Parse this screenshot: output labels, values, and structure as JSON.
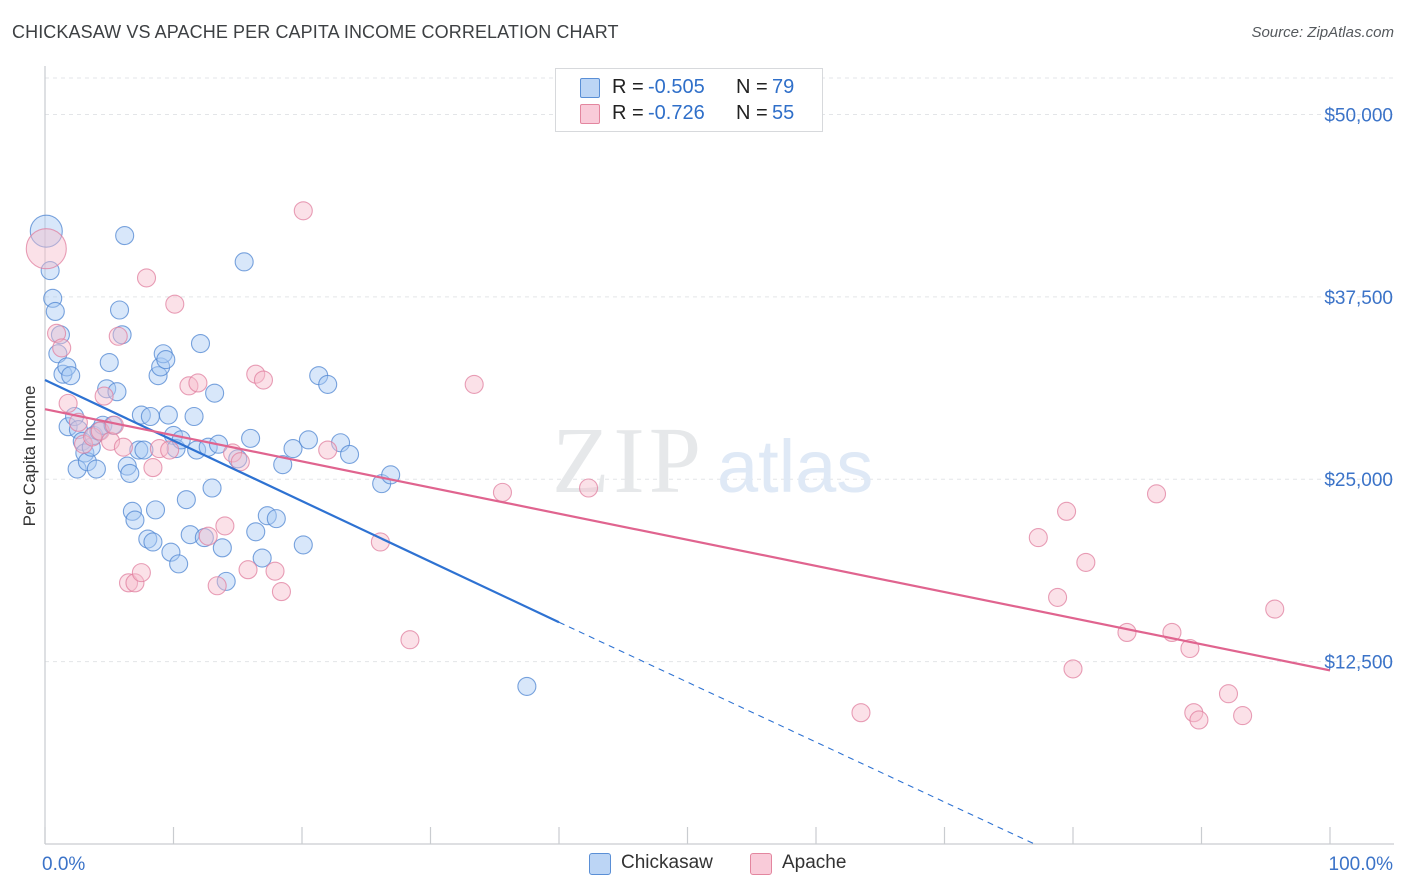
{
  "header": {
    "title": "CHICKASAW VS APACHE PER CAPITA INCOME CORRELATION CHART",
    "source": "Source: ZipAtlas.com"
  },
  "watermark": {
    "zip": "ZIP",
    "atlas": "atlas"
  },
  "legend": {
    "rows": [
      {
        "r_label": "R =",
        "r_value": "-0.505",
        "n_label": "N =",
        "n_value": "79"
      },
      {
        "r_label": "R =",
        "r_value": "-0.726",
        "n_label": "N =",
        "n_value": "55"
      }
    ]
  },
  "bottom_legend": {
    "items": [
      "Chickasaw",
      "Apache"
    ]
  },
  "colors": {
    "chickasaw_fill": "#a9c9f3",
    "chickasaw_stroke": "#4f86d1",
    "chickasaw_line": "#2e72d2",
    "apache_fill": "#f6bccd",
    "apache_stroke": "#e07f9f",
    "apache_line": "#e0648f",
    "axis_text": "#3b73c8",
    "grid": "#e3e5e8"
  },
  "chart_data": {
    "type": "scatter",
    "title": "CHICKASAW VS APACHE PER CAPITA INCOME CORRELATION CHART",
    "xlabel": "",
    "ylabel": "Per Capita Income",
    "xlim": [
      0,
      100
    ],
    "ylim": [
      0,
      52500
    ],
    "x_tick_labels": [
      "0.0%",
      "100.0%"
    ],
    "y_ticks": [
      12500,
      25000,
      37500,
      50000
    ],
    "y_tick_labels": [
      "$12,500",
      "$25,000",
      "$37,500",
      "$50,000"
    ],
    "series": [
      {
        "name": "Chickasaw",
        "r": -0.505,
        "n": 79,
        "trend": {
          "x": [
            0,
            40
          ],
          "y": [
            31800,
            15200
          ],
          "dashed_to": [
            77,
            0
          ]
        },
        "points": [
          [
            0.1,
            42000,
            16
          ],
          [
            0.4,
            39300,
            9
          ],
          [
            0.6,
            37400,
            9
          ],
          [
            0.8,
            36500,
            9
          ],
          [
            1.0,
            33600,
            9
          ],
          [
            1.2,
            34900,
            9
          ],
          [
            1.4,
            32200,
            9
          ],
          [
            1.7,
            32700,
            9
          ],
          [
            2.0,
            32100,
            9
          ],
          [
            1.8,
            28600,
            9
          ],
          [
            2.3,
            29300,
            9
          ],
          [
            2.6,
            28400,
            9
          ],
          [
            2.5,
            25700,
            9
          ],
          [
            2.9,
            27600,
            9
          ],
          [
            3.1,
            26800,
            9
          ],
          [
            3.3,
            26200,
            9
          ],
          [
            3.6,
            27200,
            9
          ],
          [
            3.8,
            28000,
            9
          ],
          [
            4.0,
            25700,
            9
          ],
          [
            4.2,
            28300,
            9
          ],
          [
            4.5,
            28700,
            9
          ],
          [
            4.8,
            31200,
            9
          ],
          [
            5.0,
            33000,
            9
          ],
          [
            5.3,
            28700,
            9
          ],
          [
            5.6,
            31000,
            9
          ],
          [
            5.8,
            36600,
            9
          ],
          [
            6.0,
            34900,
            9
          ],
          [
            6.2,
            41700,
            9
          ],
          [
            6.4,
            25900,
            9
          ],
          [
            6.6,
            25400,
            9
          ],
          [
            6.8,
            22800,
            9
          ],
          [
            7.0,
            22200,
            9
          ],
          [
            7.3,
            27000,
            9
          ],
          [
            7.5,
            29400,
            9
          ],
          [
            7.7,
            27000,
            9
          ],
          [
            8.0,
            20900,
            9
          ],
          [
            8.2,
            29300,
            9
          ],
          [
            8.4,
            20700,
            9
          ],
          [
            8.6,
            22900,
            9
          ],
          [
            8.8,
            32100,
            9
          ],
          [
            9.0,
            32700,
            9
          ],
          [
            9.2,
            33600,
            9
          ],
          [
            9.4,
            33200,
            9
          ],
          [
            9.6,
            29400,
            9
          ],
          [
            9.8,
            20000,
            9
          ],
          [
            10.0,
            28000,
            9
          ],
          [
            10.2,
            27100,
            9
          ],
          [
            10.4,
            19200,
            9
          ],
          [
            10.6,
            27700,
            9
          ],
          [
            11.0,
            23600,
            9
          ],
          [
            11.3,
            21200,
            9
          ],
          [
            11.6,
            29300,
            9
          ],
          [
            11.8,
            27000,
            9
          ],
          [
            12.1,
            34300,
            9
          ],
          [
            12.4,
            21000,
            9
          ],
          [
            12.7,
            27200,
            9
          ],
          [
            13.0,
            24400,
            9
          ],
          [
            13.2,
            30900,
            9
          ],
          [
            13.5,
            27400,
            9
          ],
          [
            13.8,
            20300,
            9
          ],
          [
            14.1,
            18000,
            9
          ],
          [
            15.0,
            26400,
            9
          ],
          [
            15.5,
            39900,
            9
          ],
          [
            16.0,
            27800,
            9
          ],
          [
            16.4,
            21400,
            9
          ],
          [
            16.9,
            19600,
            9
          ],
          [
            17.3,
            22500,
            9
          ],
          [
            18.0,
            22300,
            9
          ],
          [
            18.5,
            26000,
            9
          ],
          [
            19.3,
            27100,
            9
          ],
          [
            20.1,
            20500,
            9
          ],
          [
            20.5,
            27700,
            9
          ],
          [
            21.3,
            32100,
            9
          ],
          [
            22.0,
            31500,
            9
          ],
          [
            23.0,
            27500,
            9
          ],
          [
            23.7,
            26700,
            9
          ],
          [
            26.2,
            24700,
            9
          ],
          [
            26.9,
            25300,
            9
          ],
          [
            37.5,
            10800,
            9
          ]
        ]
      },
      {
        "name": "Apache",
        "r": -0.726,
        "n": 55,
        "trend": {
          "x": [
            0,
            100
          ],
          "y": [
            29800,
            11900
          ]
        },
        "points": [
          [
            0.1,
            40800,
            20
          ],
          [
            0.9,
            35000,
            9
          ],
          [
            1.3,
            34000,
            9
          ],
          [
            1.8,
            30200,
            9
          ],
          [
            2.6,
            28900,
            9
          ],
          [
            3.0,
            27400,
            9
          ],
          [
            3.7,
            27900,
            9
          ],
          [
            4.3,
            28300,
            9
          ],
          [
            4.6,
            30700,
            9
          ],
          [
            5.1,
            27600,
            9
          ],
          [
            5.4,
            28700,
            9
          ],
          [
            5.7,
            34800,
            9
          ],
          [
            6.1,
            27200,
            9
          ],
          [
            6.5,
            17900,
            9
          ],
          [
            7.0,
            17900,
            9
          ],
          [
            7.5,
            18600,
            9
          ],
          [
            7.9,
            38800,
            9
          ],
          [
            8.4,
            25800,
            9
          ],
          [
            8.9,
            27100,
            9
          ],
          [
            9.7,
            27000,
            9
          ],
          [
            10.1,
            37000,
            9
          ],
          [
            11.2,
            31400,
            9
          ],
          [
            11.9,
            31600,
            9
          ],
          [
            12.7,
            21100,
            9
          ],
          [
            13.4,
            17700,
            9
          ],
          [
            14.0,
            21800,
            9
          ],
          [
            14.6,
            26800,
            9
          ],
          [
            15.2,
            26200,
            9
          ],
          [
            15.8,
            18800,
            9
          ],
          [
            16.4,
            32200,
            9
          ],
          [
            17.0,
            31800,
            9
          ],
          [
            17.9,
            18700,
            9
          ],
          [
            18.4,
            17300,
            9
          ],
          [
            20.1,
            43400,
            9
          ],
          [
            22.0,
            27000,
            9
          ],
          [
            26.1,
            20700,
            9
          ],
          [
            28.4,
            14000,
            9
          ],
          [
            33.4,
            31500,
            9
          ],
          [
            35.6,
            24100,
            9
          ],
          [
            42.3,
            24400,
            9
          ],
          [
            63.5,
            9000,
            9
          ],
          [
            77.3,
            21000,
            9
          ],
          [
            78.8,
            16900,
            9
          ],
          [
            79.5,
            22800,
            9
          ],
          [
            80.0,
            12000,
            9
          ],
          [
            81.0,
            19300,
            9
          ],
          [
            84.2,
            14500,
            9
          ],
          [
            86.5,
            24000,
            9
          ],
          [
            87.7,
            14500,
            9
          ],
          [
            89.1,
            13400,
            9
          ],
          [
            89.4,
            9000,
            9
          ],
          [
            89.8,
            8500,
            9
          ],
          [
            92.1,
            10300,
            9
          ],
          [
            93.2,
            8800,
            9
          ],
          [
            95.7,
            16100,
            9
          ]
        ]
      }
    ]
  }
}
